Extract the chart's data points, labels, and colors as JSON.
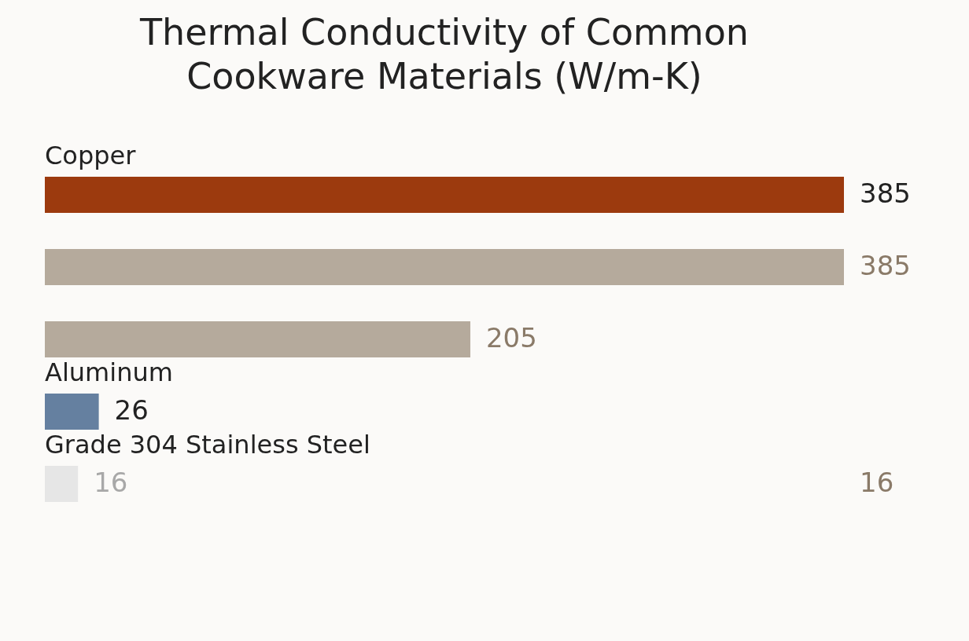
{
  "chart_data": {
    "type": "bar",
    "orientation": "horizontal",
    "title": "Thermal Conductivity of Common Cookware Materials (W/m-K)",
    "categories": [
      "Copper",
      null,
      null,
      "Aluminum",
      "Grade 304 Stainless Steel"
    ],
    "values": [
      385,
      385,
      205,
      26,
      16
    ],
    "colors": [
      "#9c3a0e",
      "#b5aa9c",
      "#b5aa9c",
      "#6580a0",
      "#e6e6e6"
    ],
    "data_labels": true,
    "annotations": [
      "16"
    ]
  }
}
